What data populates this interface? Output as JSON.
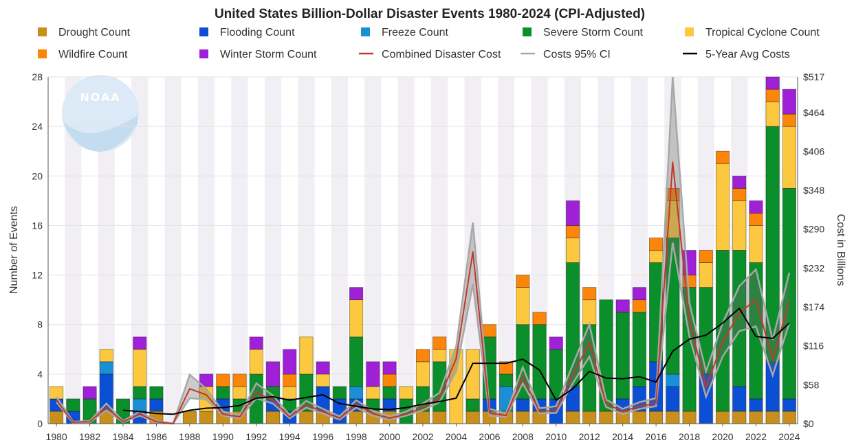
{
  "chart_data": {
    "type": "bar",
    "stacked": true,
    "title": "United States Billion-Dollar Disaster Events 1980-2024 (CPI-Adjusted)",
    "xlabel": "",
    "ylabel": "Number of Events",
    "ylabel_right": "Cost in Billions",
    "ylim": [
      0,
      28
    ],
    "ylim_right": [
      0,
      517
    ],
    "y_ticks": [
      0,
      4,
      8,
      12,
      16,
      20,
      24,
      28
    ],
    "y_tick_labels": [
      "0",
      "4",
      "8",
      "12",
      "16",
      "20",
      "24",
      "28"
    ],
    "y_right_ticks": [
      0,
      58,
      116,
      174,
      232,
      290,
      348,
      406,
      464,
      517
    ],
    "y_right_tick_labels": [
      "$0",
      "$58",
      "$116",
      "$174",
      "$232",
      "$290",
      "$348",
      "$406",
      "$464",
      "$517"
    ],
    "x_tick_labels": [
      "1980",
      "1982",
      "1984",
      "1986",
      "1988",
      "1990",
      "1992",
      "1994",
      "1996",
      "1998",
      "2000",
      "2002",
      "2004",
      "2006",
      "2008",
      "2010",
      "2012",
      "2014",
      "2016",
      "2018",
      "2020",
      "2022",
      "2024"
    ],
    "logo_text": "NOAA",
    "years": [
      1980,
      1981,
      1982,
      1983,
      1984,
      1985,
      1986,
      1987,
      1988,
      1989,
      1990,
      1991,
      1992,
      1993,
      1994,
      1995,
      1996,
      1997,
      1998,
      1999,
      2000,
      2001,
      2002,
      2003,
      2004,
      2005,
      2006,
      2007,
      2008,
      2009,
      2010,
      2011,
      2012,
      2013,
      2014,
      2015,
      2016,
      2017,
      2018,
      2019,
      2020,
      2021,
      2022,
      2023,
      2024
    ],
    "series": [
      {
        "name": "Drought Count",
        "color": "#c8901a",
        "kind": "bar",
        "values": [
          1,
          0,
          0,
          1,
          0,
          0,
          1,
          0,
          1,
          1,
          1,
          1,
          0,
          1,
          0,
          1,
          1,
          0,
          1,
          1,
          1,
          0,
          1,
          1,
          0,
          1,
          1,
          1,
          1,
          1,
          0,
          1,
          1,
          1,
          1,
          1,
          1,
          1,
          1,
          0,
          1,
          1,
          1,
          1,
          1
        ]
      },
      {
        "name": "Flooding Count",
        "color": "#0a4fd4",
        "kind": "bar",
        "values": [
          1,
          1,
          0,
          3,
          0,
          1,
          1,
          0,
          0,
          0,
          1,
          0,
          0,
          1,
          1,
          0,
          2,
          2,
          1,
          0,
          1,
          0,
          0,
          0,
          0,
          0,
          1,
          0,
          1,
          1,
          2,
          2,
          0,
          0,
          1,
          2,
          4,
          2,
          0,
          4,
          0,
          2,
          1,
          4,
          1
        ]
      },
      {
        "name": "Freeze Count",
        "color": "#1a8fd4",
        "kind": "bar",
        "values": [
          0,
          0,
          0,
          1,
          0,
          1,
          0,
          0,
          0,
          0,
          0,
          0,
          0,
          0,
          0,
          0,
          0,
          0,
          1,
          0,
          0,
          0,
          0,
          0,
          0,
          0,
          0,
          2,
          0,
          0,
          0,
          0,
          0,
          0,
          0,
          0,
          0,
          1,
          0,
          0,
          0,
          0,
          0,
          0,
          0
        ]
      },
      {
        "name": "Severe Storm Count",
        "color": "#0a8f2a",
        "kind": "bar",
        "values": [
          0,
          1,
          2,
          0,
          2,
          1,
          1,
          0,
          0,
          0,
          1,
          1,
          4,
          1,
          1,
          3,
          0,
          1,
          4,
          1,
          1,
          2,
          2,
          4,
          0,
          1,
          5,
          1,
          6,
          6,
          4,
          10,
          7,
          9,
          7,
          6,
          8,
          11,
          10,
          7,
          13,
          11,
          11,
          19,
          17
        ]
      },
      {
        "name": "Tropical Cyclone Count",
        "color": "#fcc840",
        "kind": "bar",
        "values": [
          1,
          0,
          0,
          1,
          0,
          3,
          0,
          0,
          0,
          2,
          0,
          1,
          2,
          0,
          1,
          3,
          1,
          0,
          3,
          1,
          0,
          1,
          2,
          1,
          6,
          4,
          0,
          0,
          3,
          0,
          0,
          2,
          2,
          0,
          0,
          0,
          1,
          3,
          0,
          2,
          7,
          4,
          3,
          2,
          5
        ]
      },
      {
        "name": "Wildfire Count",
        "color": "#fb860a",
        "kind": "bar",
        "values": [
          0,
          0,
          0,
          0,
          0,
          0,
          0,
          0,
          0,
          0,
          1,
          1,
          0,
          0,
          1,
          0,
          0,
          0,
          0,
          0,
          1,
          0,
          1,
          1,
          0,
          0,
          1,
          1,
          1,
          1,
          0,
          1,
          1,
          0,
          0,
          1,
          1,
          1,
          1,
          1,
          1,
          1,
          1,
          1,
          1
        ]
      },
      {
        "name": "Winter Storm Count",
        "color": "#a020d8",
        "kind": "bar",
        "values": [
          0,
          0,
          1,
          0,
          0,
          1,
          0,
          0,
          0,
          1,
          0,
          0,
          1,
          2,
          2,
          0,
          1,
          0,
          1,
          2,
          1,
          0,
          0,
          0,
          0,
          0,
          0,
          0,
          0,
          0,
          1,
          2,
          0,
          0,
          1,
          1,
          0,
          0,
          2,
          0,
          0,
          1,
          1,
          1,
          2
        ]
      },
      {
        "name": "Combined Disaster Cost",
        "color": "#c0392b",
        "kind": "line",
        "values": [
          35,
          2,
          3,
          24,
          3,
          14,
          3,
          0,
          52,
          43,
          14,
          10,
          46,
          35,
          10,
          28,
          18,
          8,
          29,
          15,
          8,
          14,
          24,
          38,
          97,
          256,
          16,
          12,
          70,
          18,
          20,
          72,
          121,
          30,
          18,
          26,
          30,
          390,
          154,
          54,
          122,
          165,
          185,
          96,
          182
        ]
      },
      {
        "name": "Costs 95% CI",
        "color": "#999999",
        "kind": "band",
        "lower": [
          32,
          1,
          2,
          20,
          2,
          12,
          2,
          0,
          38,
          36,
          12,
          8,
          38,
          30,
          8,
          24,
          15,
          6,
          24,
          12,
          6,
          12,
          20,
          32,
          78,
          208,
          12,
          10,
          60,
          15,
          16,
          60,
          100,
          25,
          14,
          22,
          26,
          270,
          130,
          40,
          100,
          138,
          145,
          72,
          150
        ],
        "upper": [
          40,
          3,
          4,
          30,
          4,
          18,
          4,
          0,
          73,
          52,
          18,
          13,
          60,
          42,
          13,
          34,
          22,
          11,
          35,
          19,
          11,
          18,
          30,
          46,
          115,
          300,
          22,
          15,
          84,
          23,
          26,
          88,
          148,
          36,
          22,
          32,
          38,
          517,
          180,
          78,
          150,
          205,
          230,
          125,
          225
        ]
      },
      {
        "name": "5-Year Avg Costs",
        "color": "#000000",
        "kind": "line",
        "values": [
          null,
          null,
          null,
          null,
          20,
          18,
          15,
          14,
          20,
          23,
          24,
          27,
          38,
          40,
          35,
          39,
          43,
          30,
          26,
          22,
          21,
          24,
          29,
          33,
          38,
          90,
          90,
          90,
          96,
          80,
          35,
          52,
          78,
          68,
          67,
          70,
          62,
          108,
          126,
          132,
          150,
          172,
          130,
          127,
          150
        ]
      }
    ]
  }
}
